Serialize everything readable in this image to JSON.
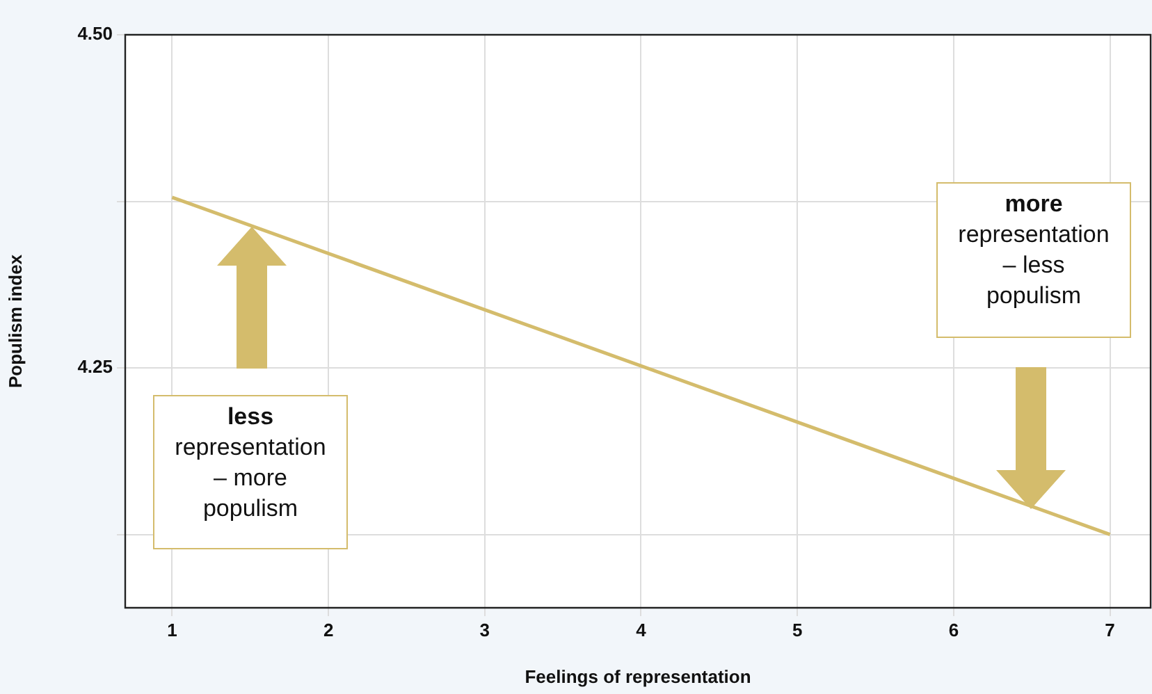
{
  "chart_data": {
    "type": "line",
    "xlabel": "Feelings of representation",
    "ylabel": "Populism index",
    "x": [
      1,
      7
    ],
    "series": [
      {
        "color": "#d4bc6c",
        "values": [
          4.378,
          4.125
        ]
      }
    ],
    "xlim": [
      0.7,
      7.26
    ],
    "xticks": [
      1,
      2,
      3,
      4,
      5,
      6,
      7
    ],
    "ylim": [
      4.07,
      4.5
    ],
    "yticks": [
      {
        "value": 4.125,
        "label": null
      },
      {
        "value": 4.25,
        "label": "4.25"
      },
      {
        "value": 4.375,
        "label": null
      },
      {
        "value": 4.5,
        "label": "4.50"
      }
    ],
    "grid": true,
    "legend": false,
    "marker": "none",
    "line_style": "solid",
    "annotations": [
      "less\nrepresentation\n– more\npopulism",
      "more\nrepresentation\n– less\npopulism"
    ]
  }
}
